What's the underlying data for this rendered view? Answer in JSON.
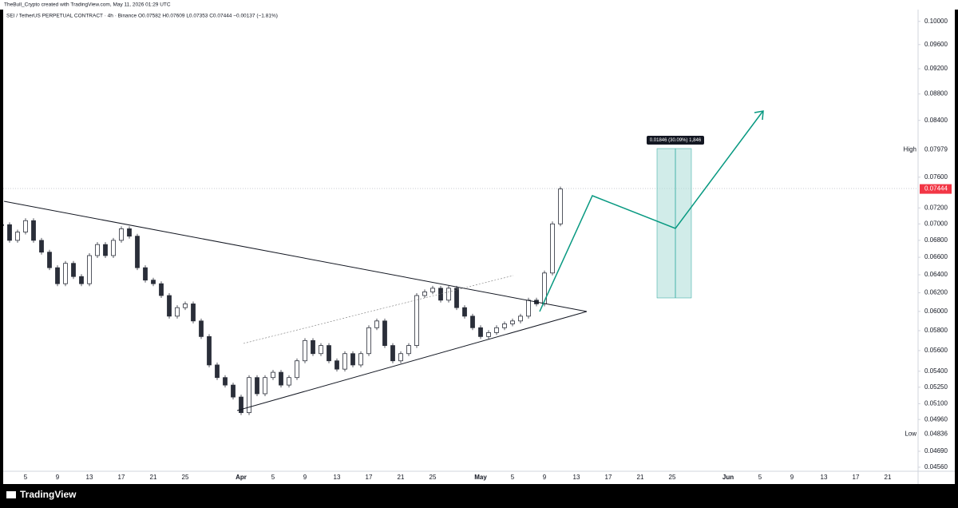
{
  "header": "TheBull_Crypto created with TradingView.com, May 11, 2026 01:29 UTC",
  "legend_line": "SEI / TetherUS PERPETUAL CONTRACT · 4h · Binance  O0.07582 H0.07609 L0.07353 C0.07444 −0.00137 (−1.81%)",
  "measure_label": "0.01846 (30.09%) 1,846",
  "footer": "TradingView",
  "chart_data": {
    "type": "candlestick",
    "log_scale": true,
    "grid": false,
    "candle_color": "#2a2e39",
    "x": [
      "2026-03-02",
      "2026-03-03",
      "2026-03-04",
      "2026-03-05",
      "2026-03-06",
      "2026-03-07",
      "2026-03-08",
      "2026-03-09",
      "2026-03-10",
      "2026-03-11",
      "2026-03-12",
      "2026-03-13",
      "2026-03-14",
      "2026-03-15",
      "2026-03-16",
      "2026-03-17",
      "2026-03-18",
      "2026-03-19",
      "2026-03-20",
      "2026-03-21",
      "2026-03-22",
      "2026-03-23",
      "2026-03-24",
      "2026-03-25",
      "2026-03-26",
      "2026-03-27",
      "2026-03-28",
      "2026-03-29",
      "2026-03-30",
      "2026-03-31",
      "2026-04-01",
      "2026-04-02",
      "2026-04-03",
      "2026-04-04",
      "2026-04-05",
      "2026-04-06",
      "2026-04-07",
      "2026-04-08",
      "2026-04-09",
      "2026-04-10",
      "2026-04-11",
      "2026-04-12",
      "2026-04-13",
      "2026-04-14",
      "2026-04-15",
      "2026-04-16",
      "2026-04-17",
      "2026-04-18",
      "2026-04-19",
      "2026-04-20",
      "2026-04-21",
      "2026-04-22",
      "2026-04-23",
      "2026-04-24",
      "2026-04-25",
      "2026-04-26",
      "2026-04-27",
      "2026-04-28",
      "2026-04-29",
      "2026-04-30",
      "2026-05-01",
      "2026-05-02",
      "2026-05-03",
      "2026-05-04",
      "2026-05-05",
      "2026-05-06",
      "2026-05-07",
      "2026-05-08",
      "2026-05-09",
      "2026-05-10",
      "2026-05-11"
    ],
    "series": [
      {
        "name": "SEIUSDT",
        "values": [
          0.0699,
          0.068,
          0.069,
          0.0704,
          0.068,
          0.0666,
          0.0648,
          0.063,
          0.0653,
          0.0638,
          0.063,
          0.0662,
          0.0675,
          0.0662,
          0.068,
          0.0694,
          0.0685,
          0.0648,
          0.0634,
          0.063,
          0.0617,
          0.0595,
          0.0604,
          0.0608,
          0.059,
          0.0574,
          0.0546,
          0.0534,
          0.0527,
          0.0516,
          0.0502,
          0.0534,
          0.0519,
          0.0534,
          0.0539,
          0.0527,
          0.0534,
          0.055,
          0.057,
          0.0557,
          0.0565,
          0.055,
          0.0542,
          0.0557,
          0.0546,
          0.0557,
          0.0583,
          0.059,
          0.0565,
          0.055,
          0.0557,
          0.0565,
          0.0617,
          0.0621,
          0.0625,
          0.0612,
          0.0625,
          0.0604,
          0.0595,
          0.0583,
          0.0574,
          0.0578,
          0.0583,
          0.0587,
          0.059,
          0.0595,
          0.0612,
          0.0608,
          0.0642,
          0.07,
          0.07444
        ]
      }
    ],
    "xlim": [
      "2026-03-01",
      "2026-06-25"
    ],
    "xticks": [
      {
        "value": "2026-03-05",
        "label": "5"
      },
      {
        "value": "2026-03-09",
        "label": "9"
      },
      {
        "value": "2026-03-13",
        "label": "13"
      },
      {
        "value": "2026-03-17",
        "label": "17"
      },
      {
        "value": "2026-03-21",
        "label": "21"
      },
      {
        "value": "2026-03-25",
        "label": "25"
      },
      {
        "value": "2026-04-01",
        "label": "Apr"
      },
      {
        "value": "2026-04-05",
        "label": "5"
      },
      {
        "value": "2026-04-09",
        "label": "9"
      },
      {
        "value": "2026-04-13",
        "label": "13"
      },
      {
        "value": "2026-04-17",
        "label": "17"
      },
      {
        "value": "2026-04-21",
        "label": "21"
      },
      {
        "value": "2026-04-25",
        "label": "25"
      },
      {
        "value": "2026-05-01",
        "label": "May"
      },
      {
        "value": "2026-05-05",
        "label": "5"
      },
      {
        "value": "2026-05-09",
        "label": "9"
      },
      {
        "value": "2026-05-13",
        "label": "13"
      },
      {
        "value": "2026-05-17",
        "label": "17"
      },
      {
        "value": "2026-05-21",
        "label": "21"
      },
      {
        "value": "2026-05-25",
        "label": "25"
      },
      {
        "value": "2026-06-01",
        "label": "Jun"
      },
      {
        "value": "2026-06-05",
        "label": "5"
      },
      {
        "value": "2026-06-09",
        "label": "9"
      },
      {
        "value": "2026-06-13",
        "label": "13"
      },
      {
        "value": "2026-06-17",
        "label": "17"
      },
      {
        "value": "2026-06-21",
        "label": "21"
      }
    ],
    "ylim": [
      0.04515,
      0.1021
    ],
    "yticks": [
      {
        "value": 0.1,
        "label": "0.10000"
      },
      {
        "value": 0.096,
        "label": "0.09600"
      },
      {
        "value": 0.092,
        "label": "0.09200"
      },
      {
        "value": 0.088,
        "label": "0.08800"
      },
      {
        "value": 0.084,
        "label": "0.08400"
      },
      {
        "value": 0.076,
        "label": "0.07600"
      },
      {
        "value": 0.072,
        "label": "0.07200"
      },
      {
        "value": 0.07,
        "label": "0.07000"
      },
      {
        "value": 0.068,
        "label": "0.06800"
      },
      {
        "value": 0.066,
        "label": "0.06600"
      },
      {
        "value": 0.064,
        "label": "0.06400"
      },
      {
        "value": 0.062,
        "label": "0.06200"
      },
      {
        "value": 0.06,
        "label": "0.06000"
      },
      {
        "value": 0.058,
        "label": "0.05800"
      },
      {
        "value": 0.056,
        "label": "0.05600"
      },
      {
        "value": 0.054,
        "label": "0.05400"
      },
      {
        "value": 0.0525,
        "label": "0.05250"
      },
      {
        "value": 0.051,
        "label": "0.05100"
      },
      {
        "value": 0.0496,
        "label": "0.04960"
      },
      {
        "value": 0.0469,
        "label": "0.04690"
      },
      {
        "value": 0.0456,
        "label": "0.04560"
      }
    ],
    "high": {
      "label": "High",
      "value": 0.07979
    },
    "low": {
      "label": "Low",
      "value": 0.04836
    },
    "last_price": 0.07444
  }
}
